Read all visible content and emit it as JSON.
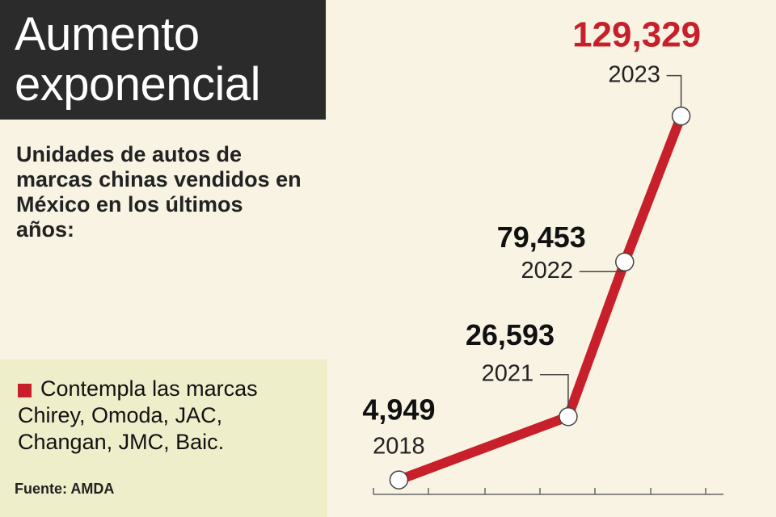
{
  "chart_data": {
    "type": "line",
    "title": "Aumento exponencial",
    "subtitle": "Unidades de autos de marcas chinas vendidos en México en los últimos años:",
    "note": "Contempla las marcas Chirey, Omoda, JAC, Changan, JMC, Baic.",
    "source": "Fuente: AMDA",
    "x": [
      2018,
      2021,
      2022,
      2023
    ],
    "values": [
      4949,
      26593,
      79453,
      129329
    ],
    "value_labels": [
      "4,949",
      "26,593",
      "79,453",
      "129,329"
    ],
    "color": "#c8202a",
    "highlight_color": "#c8202a",
    "xlim": [
      2017.55,
      2023.75
    ],
    "ylim": [
      0,
      140000
    ]
  }
}
